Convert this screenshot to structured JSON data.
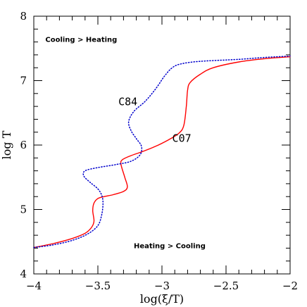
{
  "chart_data": {
    "type": "line",
    "xlabel": "log(ξ/T)",
    "ylabel": "log T",
    "xlim": [
      -4,
      -2
    ],
    "ylim": [
      4,
      8
    ],
    "x_ticks": [
      -4,
      -3.5,
      -3,
      -2.5,
      -2
    ],
    "x_tick_labels": [
      "−4",
      "−3.5",
      "−3",
      "−2.5",
      "−2"
    ],
    "y_ticks": [
      4,
      5,
      6,
      7,
      8
    ],
    "y_tick_labels": [
      "4",
      "5",
      "6",
      "7",
      "8"
    ],
    "grid": false,
    "annotations": [
      {
        "text": "Cooling > Heating",
        "x": -3.91,
        "y": 7.6
      },
      {
        "text": "Heating > Cooling",
        "x": -3.22,
        "y": 4.4
      },
      {
        "text": "C84",
        "x": -3.34,
        "y": 6.62
      },
      {
        "text": "C07",
        "x": -2.92,
        "y": 6.05
      }
    ],
    "series": [
      {
        "name": "C07",
        "color": "#ff0000",
        "dash": "solid",
        "points": [
          [
            -4.0,
            4.41
          ],
          [
            -3.85,
            4.47
          ],
          [
            -3.7,
            4.55
          ],
          [
            -3.6,
            4.63
          ],
          [
            -3.55,
            4.72
          ],
          [
            -3.53,
            4.82
          ],
          [
            -3.54,
            4.98
          ],
          [
            -3.53,
            5.1
          ],
          [
            -3.5,
            5.17
          ],
          [
            -3.45,
            5.2
          ],
          [
            -3.38,
            5.23
          ],
          [
            -3.3,
            5.28
          ],
          [
            -3.27,
            5.35
          ],
          [
            -3.29,
            5.5
          ],
          [
            -3.32,
            5.7
          ],
          [
            -3.31,
            5.77
          ],
          [
            -3.25,
            5.83
          ],
          [
            -3.15,
            5.9
          ],
          [
            -3.05,
            5.98
          ],
          [
            -2.95,
            6.08
          ],
          [
            -2.87,
            6.18
          ],
          [
            -2.83,
            6.3
          ],
          [
            -2.81,
            6.6
          ],
          [
            -2.8,
            6.85
          ],
          [
            -2.78,
            6.97
          ],
          [
            -2.7,
            7.1
          ],
          [
            -2.6,
            7.2
          ],
          [
            -2.4,
            7.29
          ],
          [
            -2.2,
            7.34
          ],
          [
            -2.0,
            7.37
          ]
        ]
      },
      {
        "name": "C84",
        "color": "#0000cc",
        "dash": "dotted",
        "points": [
          [
            -4.0,
            4.41
          ],
          [
            -3.85,
            4.45
          ],
          [
            -3.7,
            4.52
          ],
          [
            -3.58,
            4.62
          ],
          [
            -3.5,
            4.75
          ],
          [
            -3.47,
            4.92
          ],
          [
            -3.46,
            5.1
          ],
          [
            -3.47,
            5.22
          ],
          [
            -3.5,
            5.32
          ],
          [
            -3.56,
            5.42
          ],
          [
            -3.61,
            5.52
          ],
          [
            -3.6,
            5.6
          ],
          [
            -3.5,
            5.65
          ],
          [
            -3.35,
            5.7
          ],
          [
            -3.24,
            5.75
          ],
          [
            -3.17,
            5.85
          ],
          [
            -3.16,
            5.98
          ],
          [
            -3.2,
            6.1
          ],
          [
            -3.24,
            6.22
          ],
          [
            -3.26,
            6.36
          ],
          [
            -3.22,
            6.52
          ],
          [
            -3.13,
            6.68
          ],
          [
            -3.05,
            6.87
          ],
          [
            -2.98,
            7.07
          ],
          [
            -2.92,
            7.2
          ],
          [
            -2.85,
            7.26
          ],
          [
            -2.7,
            7.3
          ],
          [
            -2.4,
            7.33
          ],
          [
            -2.2,
            7.36
          ],
          [
            -2.0,
            7.38
          ]
        ]
      }
    ]
  }
}
